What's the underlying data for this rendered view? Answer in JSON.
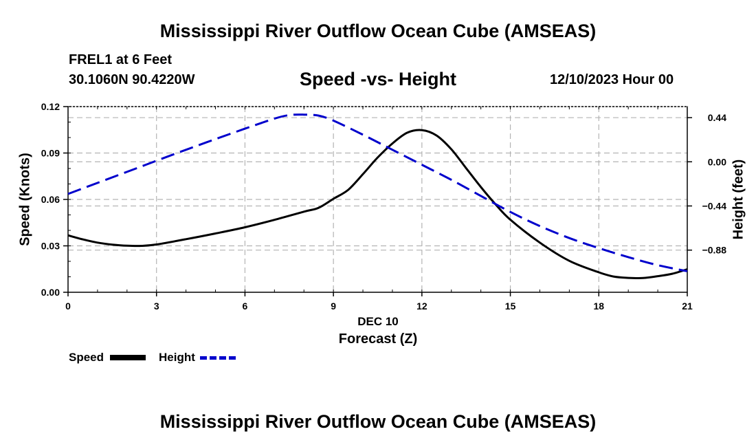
{
  "title": "Mississippi River Outflow Ocean Cube (AMSEAS)",
  "footer_title": "Mississippi River Outflow Ocean Cube (AMSEAS)",
  "station": "FREL1 at 6 Feet",
  "coordinates": "30.1060N  90.4220W",
  "datetime": "12/10/2023 Hour 00",
  "colors": {
    "speed": "#000000",
    "height": "#0000cc",
    "grid": "#b3b3b3"
  },
  "chart_data": {
    "type": "line",
    "title": "Speed -vs- Height",
    "xlabel": "Forecast (Z)",
    "x_date_label": "DEC 10",
    "ylabel": "Speed (Knots)",
    "y2label": "Height (feet)",
    "xlim": [
      0,
      21
    ],
    "ylim": [
      0,
      0.12
    ],
    "y2lim": [
      -1.3,
      0.55
    ],
    "x_ticks": [
      0,
      3,
      6,
      9,
      12,
      15,
      18,
      21
    ],
    "x_tick_labels": [
      "0",
      "3",
      "6",
      "9",
      "12",
      "15",
      "18",
      "21"
    ],
    "y_ticks": [
      0,
      0.03,
      0.06,
      0.09,
      0.12
    ],
    "y_tick_labels": [
      "0.00",
      "0.03",
      "0.06",
      "0.09",
      "0.12"
    ],
    "y2_ticks": [
      0.44,
      0.0,
      -0.44,
      -0.88
    ],
    "y2_tick_labels": [
      "0.44",
      "0.00",
      "−0.44",
      "−0.88"
    ],
    "grid": true,
    "series": [
      {
        "name": "Speed",
        "axis": "left",
        "style": "solid",
        "x": [
          0,
          0.5,
          1,
          1.5,
          2,
          2.5,
          3,
          4,
          5,
          6,
          7,
          8,
          8.5,
          9,
          9.5,
          10,
          10.5,
          11,
          11.5,
          12,
          12.5,
          13,
          13.5,
          14,
          14.5,
          15,
          16,
          17,
          18,
          18.5,
          19,
          19.5,
          20,
          20.5,
          21
        ],
        "values": [
          0.0368,
          0.0342,
          0.0321,
          0.0308,
          0.0301,
          0.03,
          0.0309,
          0.0343,
          0.038,
          0.042,
          0.0468,
          0.0521,
          0.0546,
          0.0604,
          0.0662,
          0.0763,
          0.0871,
          0.0962,
          0.1031,
          0.1048,
          0.1013,
          0.0924,
          0.0802,
          0.068,
          0.0568,
          0.0469,
          0.0321,
          0.0203,
          0.0129,
          0.0102,
          0.0093,
          0.0092,
          0.0104,
          0.012,
          0.0149
        ]
      },
      {
        "name": "Height",
        "axis": "right",
        "style": "dashed",
        "x": [
          0,
          2,
          4,
          6,
          7,
          7.5,
          8,
          8.5,
          9,
          10,
          11,
          12,
          13,
          14,
          15,
          16,
          17,
          18,
          19,
          20,
          21
        ],
        "values": [
          -0.32,
          -0.1,
          0.12,
          0.33,
          0.43,
          0.465,
          0.47,
          0.46,
          0.41,
          0.27,
          0.12,
          -0.03,
          -0.18,
          -0.34,
          -0.5,
          -0.64,
          -0.76,
          -0.86,
          -0.95,
          -1.03,
          -1.09
        ]
      }
    ],
    "legend": [
      {
        "label": "Speed",
        "style": "solid"
      },
      {
        "label": "Height",
        "style": "dashed"
      }
    ],
    "legend_position": "bottom-left"
  }
}
